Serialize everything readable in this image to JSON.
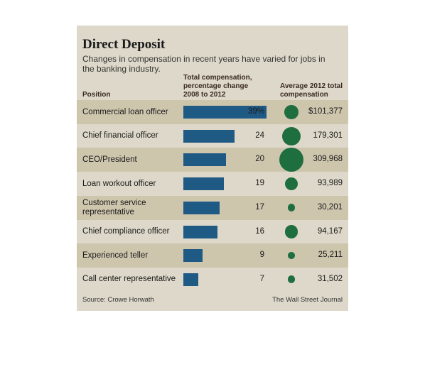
{
  "chart_data": {
    "type": "bar",
    "title": "Direct Deposit",
    "subtitle": "Changes in compensation in recent years have varied for jobs in the banking industry.",
    "category_header": "Position",
    "categories": [
      "Commercial loan officer",
      "Chief financial officer",
      "CEO/President",
      "Loan workout officer",
      "Customer service representative",
      "Chief compliance officer",
      "Experienced teller",
      "Call center representative"
    ],
    "series": [
      {
        "name": "Total compensation, percentage change 2008 to 2012",
        "color": "#1f5a85",
        "values": [
          39,
          24,
          20,
          19,
          17,
          16,
          9,
          7
        ],
        "value_labels": [
          "39%",
          "24",
          "20",
          "19",
          "17",
          "16",
          "9",
          "7"
        ]
      },
      {
        "name": "Average 2012 total compensation",
        "color": "#1f6e3f",
        "values": [
          101377,
          179301,
          309968,
          93989,
          30201,
          94167,
          25211,
          31502
        ],
        "value_labels": [
          "$101,377",
          "179,301",
          "309,968",
          "93,989",
          "30,201",
          "94,167",
          "25,211",
          "31,502"
        ]
      }
    ],
    "source": "Source: Crowe Horwath",
    "credit": "The Wall Street Journal"
  }
}
